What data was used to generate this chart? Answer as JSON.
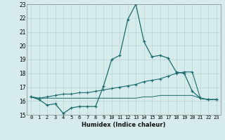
{
  "xlabel": "Humidex (Indice chaleur)",
  "xlim": [
    -0.5,
    23.5
  ],
  "ylim": [
    15,
    23
  ],
  "yticks": [
    15,
    16,
    17,
    18,
    19,
    20,
    21,
    22,
    23
  ],
  "xticks": [
    0,
    1,
    2,
    3,
    4,
    5,
    6,
    7,
    8,
    9,
    10,
    11,
    12,
    13,
    14,
    15,
    16,
    17,
    18,
    19,
    20,
    21,
    22,
    23
  ],
  "bg_color": "#d6ecec",
  "grid_color": "#b8d4d4",
  "line_color": "#1a6b6b",
  "line1_x": [
    0,
    1,
    2,
    3,
    4,
    5,
    6,
    7,
    8,
    9,
    10,
    11,
    12,
    13,
    14,
    15,
    16,
    17,
    18,
    19,
    20,
    21,
    22,
    23
  ],
  "line1_y": [
    16.3,
    16.1,
    15.7,
    15.8,
    15.1,
    15.5,
    15.6,
    15.6,
    15.6,
    17.1,
    19.0,
    19.3,
    21.9,
    23.0,
    20.3,
    19.2,
    19.3,
    19.1,
    18.1,
    18.0,
    16.7,
    16.2,
    16.1,
    16.1
  ],
  "line2_x": [
    0,
    1,
    2,
    3,
    4,
    5,
    6,
    7,
    8,
    9,
    10,
    11,
    12,
    13,
    14,
    15,
    16,
    17,
    18,
    19,
    20,
    21,
    22,
    23
  ],
  "line2_y": [
    16.3,
    16.2,
    16.3,
    16.4,
    16.5,
    16.5,
    16.6,
    16.6,
    16.7,
    16.8,
    16.9,
    17.0,
    17.1,
    17.2,
    17.4,
    17.5,
    17.6,
    17.8,
    18.0,
    18.1,
    18.1,
    16.2,
    16.1,
    16.1
  ],
  "line3_x": [
    0,
    1,
    2,
    3,
    4,
    5,
    6,
    7,
    8,
    9,
    10,
    11,
    12,
    13,
    14,
    15,
    16,
    17,
    18,
    19,
    20,
    21,
    22,
    23
  ],
  "line3_y": [
    16.3,
    16.2,
    16.2,
    16.2,
    16.2,
    16.2,
    16.2,
    16.2,
    16.2,
    16.2,
    16.2,
    16.2,
    16.2,
    16.2,
    16.3,
    16.3,
    16.4,
    16.4,
    16.4,
    16.4,
    16.4,
    16.2,
    16.1,
    16.1
  ]
}
